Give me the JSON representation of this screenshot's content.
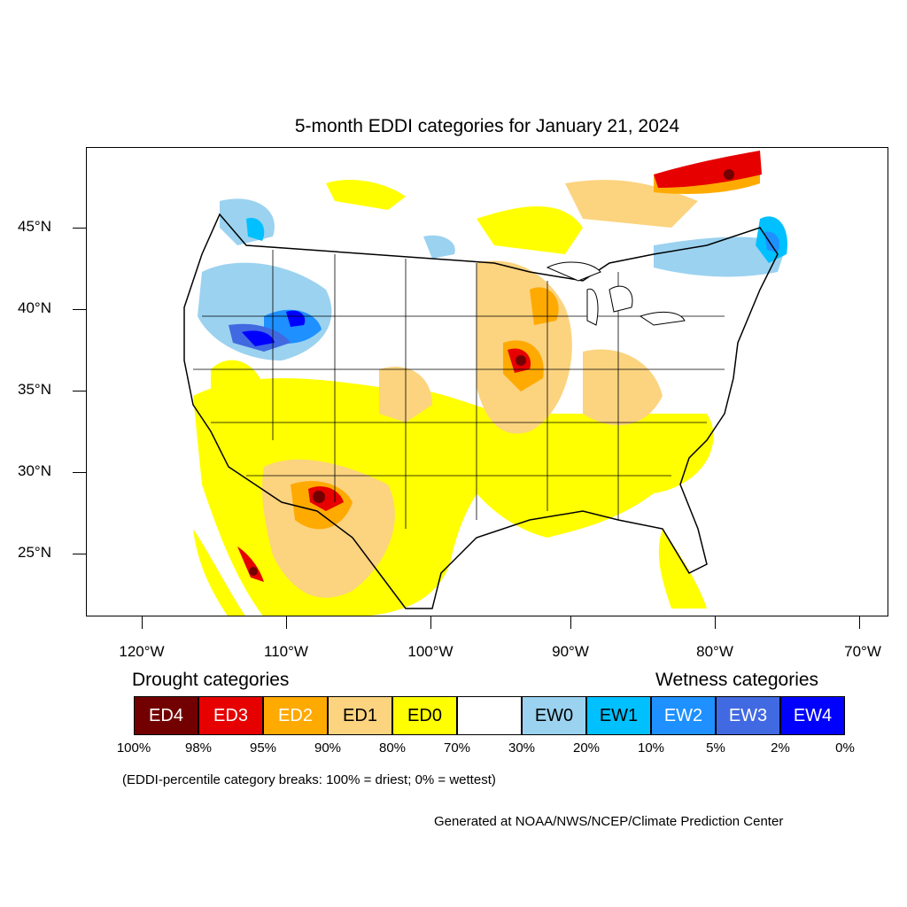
{
  "map": {
    "title": "5-month EDDI categories for January 21, 2024",
    "lat_labels": [
      "45°N",
      "40°N",
      "35°N",
      "30°N",
      "25°N"
    ],
    "lon_labels": [
      "120°W",
      "110°W",
      "100°W",
      "90°W",
      "80°W",
      "70°W"
    ],
    "lat_range": [
      21,
      49.5
    ],
    "lon_range": [
      -124,
      -68.5
    ]
  },
  "legend": {
    "drought_title": "Drought categories",
    "wetness_title": "Wetness categories",
    "categories": [
      {
        "label": "ED4",
        "color": "#730000",
        "text_color": "#ffffff"
      },
      {
        "label": "ED3",
        "color": "#e60000",
        "text_color": "#ffffff"
      },
      {
        "label": "ED2",
        "color": "#ffaa00",
        "text_color": "#ffffff"
      },
      {
        "label": "ED1",
        "color": "#fcd37f",
        "text_color": "#000000"
      },
      {
        "label": "ED0",
        "color": "#ffff00",
        "text_color": "#000000"
      },
      {
        "label": "",
        "color": "#ffffff",
        "text_color": "#000000"
      },
      {
        "label": "EW0",
        "color": "#9bd2f0",
        "text_color": "#000000"
      },
      {
        "label": "EW1",
        "color": "#00c0ff",
        "text_color": "#000000"
      },
      {
        "label": "EW2",
        "color": "#1e90ff",
        "text_color": "#ffffff"
      },
      {
        "label": "EW3",
        "color": "#4169e1",
        "text_color": "#ffffff"
      },
      {
        "label": "EW4",
        "color": "#0000ff",
        "text_color": "#ffffff"
      }
    ],
    "breaks": [
      "100%",
      "98%",
      "95%",
      "90%",
      "80%",
      "70%",
      "30%",
      "20%",
      "10%",
      "5%",
      "2%",
      "0%"
    ],
    "note": "(EDDI-percentile category breaks: 100% = driest; 0% = wettest)"
  },
  "credit": "Generated at NOAA/NWS/NCEP/Climate Prediction Center"
}
